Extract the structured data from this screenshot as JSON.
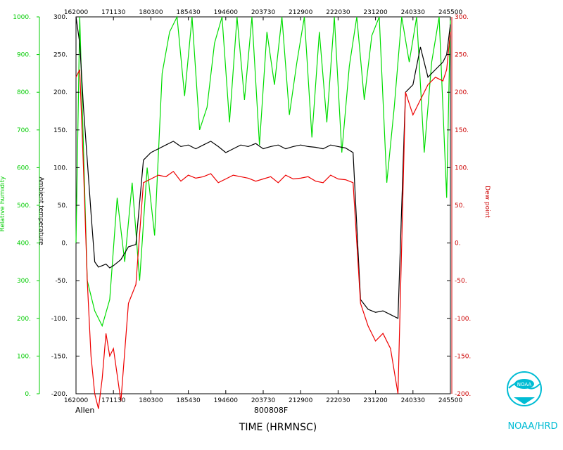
{
  "chart_data": {
    "type": "line",
    "title": "",
    "flight_id": "800808F",
    "storm_name": "Allen",
    "xlabel": "TIME (HRMNSC)",
    "x_ticks": [
      "162000",
      "171130",
      "180300",
      "185430",
      "194600",
      "203730",
      "212900",
      "222030",
      "231200",
      "240330",
      "245500"
    ],
    "left_axis": {
      "label": "Relative humidity",
      "color": "#00cc00",
      "ylim": [
        0,
        1000
      ],
      "ticks": [
        "0.",
        "100.",
        "200.",
        "300.",
        "400.",
        "500.",
        "600.",
        "700.",
        "800.",
        "900.",
        "1000."
      ]
    },
    "inner_axis": {
      "label": "Ambient temperature",
      "color": "#000000",
      "ylim": [
        -200,
        300
      ],
      "ticks": [
        "-200.",
        "-150.",
        "-100.",
        "-50.",
        "0.",
        "50.",
        "100.",
        "150.",
        "200.",
        "250.",
        "300."
      ]
    },
    "right_axis": {
      "label": "Dew point",
      "color": "#cc0000",
      "ylim": [
        -200,
        300
      ],
      "ticks": [
        "-200.",
        "-150.",
        "-100.",
        "-50.",
        "0.",
        "50.",
        "100.",
        "150.",
        "200.",
        "250.",
        "300."
      ]
    },
    "series": [
      {
        "name": "Relative humidity",
        "color": "#00dd00",
        "axis": "left",
        "x": [
          0,
          1,
          3,
          5,
          7,
          9,
          11,
          13,
          15,
          17,
          19,
          21,
          23,
          25,
          27,
          29,
          31,
          33,
          35,
          37,
          39,
          41,
          43,
          45,
          47,
          49,
          51,
          53,
          55,
          57,
          59,
          61,
          63,
          65,
          67,
          69,
          71,
          73,
          75,
          77,
          79,
          81,
          83,
          85,
          87,
          89,
          91,
          93,
          95,
          97,
          99,
          100
        ],
        "values": [
          400,
          1000,
          300,
          220,
          180,
          250,
          520,
          350,
          560,
          300,
          600,
          420,
          850,
          960,
          1000,
          790,
          1000,
          700,
          760,
          930,
          1000,
          720,
          1000,
          780,
          1000,
          660,
          960,
          820,
          1000,
          740,
          880,
          1000,
          680,
          960,
          720,
          1000,
          640,
          870,
          1000,
          780,
          950,
          1000,
          560,
          760,
          1000,
          880,
          1000,
          640,
          880,
          1000,
          520,
          1000
        ]
      },
      {
        "name": "Ambient temperature",
        "color": "#000000",
        "axis": "inner",
        "x": [
          0,
          1,
          2,
          3,
          4,
          5,
          6,
          7,
          8,
          9,
          10,
          12,
          14,
          16,
          18,
          20,
          22,
          24,
          26,
          28,
          30,
          32,
          34,
          36,
          38,
          40,
          42,
          44,
          46,
          48,
          50,
          52,
          54,
          56,
          58,
          60,
          62,
          64,
          66,
          68,
          70,
          72,
          74,
          76,
          78,
          80,
          82,
          84,
          86,
          88,
          90,
          92,
          94,
          96,
          98,
          99,
          100
        ],
        "values": [
          300,
          265,
          180,
          110,
          40,
          -25,
          -32,
          -30,
          -28,
          -33,
          -30,
          -22,
          -5,
          -2,
          110,
          120,
          125,
          130,
          135,
          128,
          130,
          125,
          130,
          135,
          128,
          120,
          125,
          130,
          128,
          132,
          125,
          128,
          130,
          125,
          128,
          130,
          128,
          127,
          125,
          130,
          128,
          126,
          120,
          -75,
          -88,
          -92,
          -90,
          -95,
          -100,
          200,
          210,
          260,
          220,
          230,
          240,
          250,
          290
        ]
      },
      {
        "name": "Dew point",
        "color": "#ee0000",
        "axis": "right",
        "x": [
          0,
          1,
          2,
          3,
          4,
          5,
          6,
          7,
          8,
          9,
          10,
          12,
          14,
          16,
          18,
          20,
          22,
          24,
          26,
          28,
          30,
          32,
          34,
          36,
          38,
          40,
          42,
          44,
          46,
          48,
          50,
          52,
          54,
          56,
          58,
          60,
          62,
          64,
          66,
          68,
          70,
          72,
          74,
          76,
          78,
          80,
          82,
          84,
          86,
          88,
          90,
          92,
          94,
          96,
          98,
          99,
          100
        ],
        "values": [
          220,
          230,
          100,
          -50,
          -150,
          -200,
          -220,
          -180,
          -120,
          -150,
          -140,
          -210,
          -80,
          -55,
          80,
          85,
          90,
          88,
          95,
          82,
          90,
          86,
          88,
          92,
          80,
          85,
          90,
          88,
          86,
          82,
          85,
          88,
          80,
          90,
          85,
          86,
          88,
          82,
          80,
          90,
          85,
          84,
          80,
          -80,
          -110,
          -130,
          -120,
          -140,
          -200,
          200,
          170,
          190,
          210,
          220,
          215,
          230,
          280
        ]
      }
    ],
    "grid": false,
    "legend": "none"
  },
  "credits": {
    "org": "NOAA/HRD",
    "logo_text": "NOAA"
  }
}
